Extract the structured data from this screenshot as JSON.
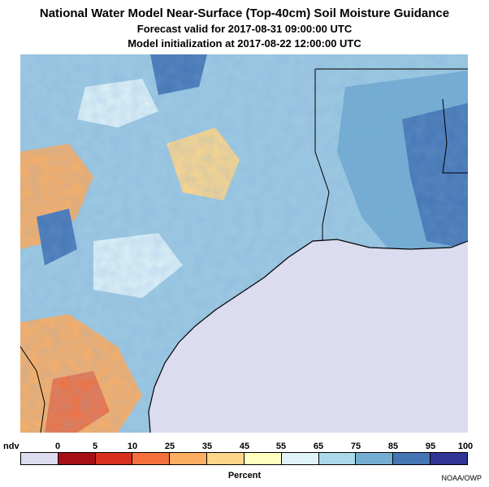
{
  "title": "National Water Model Near-Surface (Top-40cm) Soil Moisture Guidance",
  "subtitle_valid": "Forecast valid for 2017-08-31 09:00:00 UTC",
  "subtitle_init": "Model initialization at 2017-08-22 12:00:00 UTC",
  "legend": {
    "ndv_label": "ndv",
    "ticks": [
      "0",
      "5",
      "10",
      "25",
      "35",
      "45",
      "55",
      "65",
      "75",
      "85",
      "95",
      "100"
    ],
    "colors": [
      "#dcdcf0",
      "#a50f15",
      "#d7301f",
      "#f4703c",
      "#fdae61",
      "#fed68a",
      "#ffffbf",
      "#e0f3f8",
      "#abd9e9",
      "#74add1",
      "#4575b4",
      "#313695"
    ],
    "units": "Percent"
  },
  "credit": "NOAA/OWP",
  "map": {
    "region": "Texas / Louisiana Gulf Coast",
    "water_color": "#dcdcf0",
    "land_base_color": "#9ecae1"
  }
}
